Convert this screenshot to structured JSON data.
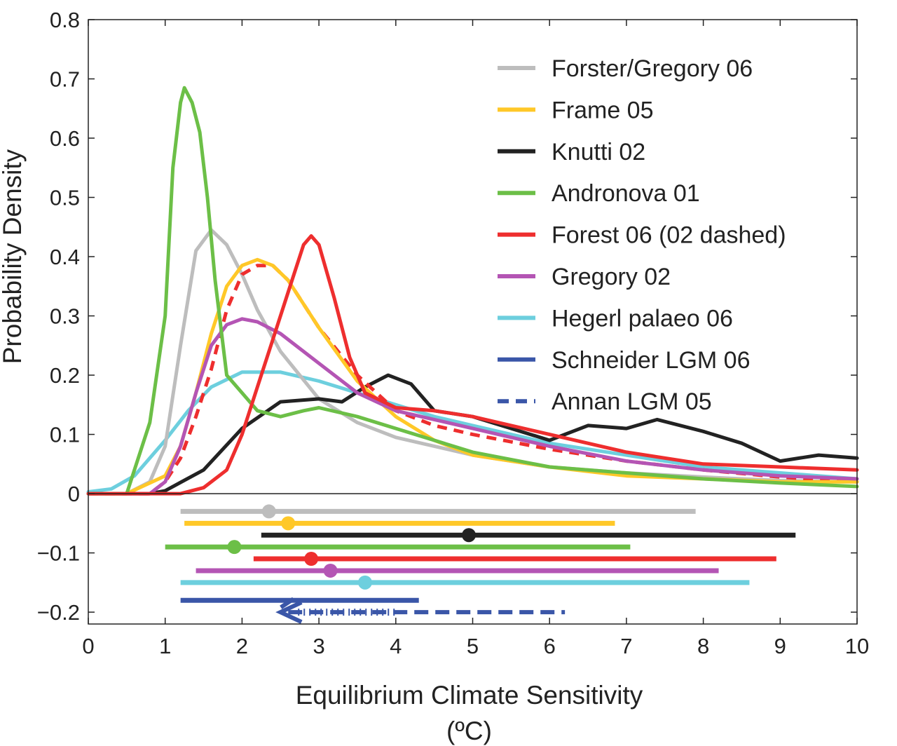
{
  "chart_data": {
    "type": "line",
    "title": "",
    "xlabel": "Equilibrium Climate Sensitivity",
    "xlabel_unit": "(ºC)",
    "ylabel": "Probability Density",
    "xlim": [
      0,
      10
    ],
    "ylim": [
      -0.22,
      0.8
    ],
    "xticks": [
      "0",
      "1",
      "2",
      "3",
      "4",
      "5",
      "6",
      "7",
      "8",
      "9",
      "10"
    ],
    "yticks": [
      {
        "value": 0.8,
        "label": "0.8"
      },
      {
        "value": 0.7,
        "label": "0.7"
      },
      {
        "value": 0.6,
        "label": "0.6"
      },
      {
        "value": 0.5,
        "label": "0.5"
      },
      {
        "value": 0.4,
        "label": "0.4"
      },
      {
        "value": 0.3,
        "label": "0.3"
      },
      {
        "value": 0.2,
        "label": "0.2"
      },
      {
        "value": 0.1,
        "label": "0.1"
      },
      {
        "value": 0,
        "label": "0"
      },
      {
        "value": -0.1,
        "label": "−0.1"
      },
      {
        "value": -0.2,
        "label": "−0.2"
      }
    ],
    "grid": false,
    "legend_position": "top-right",
    "series": [
      {
        "name": "Forster/Gregory 06",
        "color": "#bdbdbd",
        "dash": false,
        "x": [
          0,
          0.5,
          0.8,
          1.0,
          1.2,
          1.4,
          1.6,
          1.8,
          2.0,
          2.2,
          2.5,
          3.0,
          3.5,
          4.0,
          5.0,
          6.0,
          7.0,
          8.0,
          9.0,
          10.0
        ],
        "y": [
          0,
          0,
          0.02,
          0.08,
          0.25,
          0.41,
          0.445,
          0.42,
          0.37,
          0.31,
          0.24,
          0.16,
          0.12,
          0.095,
          0.065,
          0.045,
          0.035,
          0.028,
          0.022,
          0.02
        ]
      },
      {
        "name": "Frame 05",
        "color": "#ffc828",
        "dash": false,
        "x": [
          0,
          0.5,
          1.0,
          1.2,
          1.4,
          1.6,
          1.8,
          2.0,
          2.2,
          2.4,
          2.6,
          3.0,
          3.5,
          4.0,
          4.5,
          5.0,
          6.0,
          7.0,
          8.0,
          9.0,
          10.0
        ],
        "y": [
          0,
          0,
          0.03,
          0.08,
          0.17,
          0.27,
          0.35,
          0.385,
          0.395,
          0.385,
          0.36,
          0.28,
          0.19,
          0.13,
          0.09,
          0.065,
          0.045,
          0.03,
          0.025,
          0.02,
          0.02
        ]
      },
      {
        "name": "Knutti 02",
        "color": "#222222",
        "dash": false,
        "x": [
          0,
          0.8,
          1.0,
          1.5,
          2.0,
          2.5,
          3.0,
          3.3,
          3.6,
          3.9,
          4.2,
          4.5,
          5.0,
          5.5,
          6.0,
          6.5,
          7.0,
          7.4,
          8.0,
          8.5,
          9.0,
          9.5,
          10.0
        ],
        "y": [
          0,
          0,
          0.005,
          0.04,
          0.11,
          0.155,
          0.16,
          0.155,
          0.18,
          0.2,
          0.185,
          0.14,
          0.13,
          0.11,
          0.09,
          0.115,
          0.11,
          0.125,
          0.105,
          0.085,
          0.055,
          0.065,
          0.06
        ]
      },
      {
        "name": "Andronova 01",
        "color": "#6cbf47",
        "dash": false,
        "x": [
          0,
          0.5,
          0.8,
          1.0,
          1.1,
          1.2,
          1.25,
          1.35,
          1.45,
          1.55,
          1.65,
          1.8,
          2.0,
          2.2,
          2.5,
          2.8,
          3.0,
          3.5,
          4.0,
          5.0,
          6.0,
          7.0,
          8.0,
          9.0,
          10.0
        ],
        "y": [
          0,
          0,
          0.12,
          0.3,
          0.55,
          0.66,
          0.685,
          0.66,
          0.61,
          0.5,
          0.36,
          0.2,
          0.17,
          0.14,
          0.13,
          0.14,
          0.145,
          0.13,
          0.11,
          0.07,
          0.045,
          0.035,
          0.025,
          0.018,
          0.012
        ]
      },
      {
        "name": "Forest 06 (02 dashed)",
        "color": "#ee2e2e",
        "dash": false,
        "x": [
          0,
          1.2,
          1.5,
          1.8,
          2.0,
          2.2,
          2.4,
          2.6,
          2.8,
          2.9,
          3.0,
          3.2,
          3.4,
          3.6,
          4.0,
          4.5,
          5.0,
          5.5,
          6.0,
          7.0,
          8.0,
          9.0,
          10.0
        ],
        "y": [
          0,
          0,
          0.01,
          0.04,
          0.1,
          0.18,
          0.26,
          0.34,
          0.42,
          0.435,
          0.42,
          0.33,
          0.23,
          0.17,
          0.145,
          0.14,
          0.13,
          0.115,
          0.1,
          0.07,
          0.05,
          0.045,
          0.04
        ]
      },
      {
        "name": "Forest 02",
        "color": "#ee2e2e",
        "dash": true,
        "x": [
          0,
          0.8,
          1.0,
          1.2,
          1.4,
          1.6,
          1.8,
          2.0,
          2.2,
          2.4,
          2.6,
          3.0,
          3.5,
          4.0,
          4.5,
          5.0,
          6.0,
          7.0,
          8.0,
          9.0,
          10.0
        ],
        "y": [
          0,
          0,
          0.02,
          0.06,
          0.13,
          0.21,
          0.31,
          0.37,
          0.385,
          0.385,
          0.36,
          0.28,
          0.2,
          0.14,
          0.115,
          0.1,
          0.075,
          0.055,
          0.04,
          0.028,
          0.02
        ]
      },
      {
        "name": "Gregory 02",
        "color": "#b455b4",
        "dash": false,
        "x": [
          0,
          0.8,
          1.0,
          1.2,
          1.4,
          1.6,
          1.8,
          2.0,
          2.2,
          2.5,
          3.0,
          3.5,
          4.0,
          4.5,
          5.0,
          5.5,
          6.0,
          7.0,
          8.0,
          9.0,
          10.0
        ],
        "y": [
          0,
          0,
          0.02,
          0.08,
          0.17,
          0.25,
          0.285,
          0.295,
          0.29,
          0.27,
          0.22,
          0.17,
          0.14,
          0.125,
          0.11,
          0.095,
          0.08,
          0.055,
          0.04,
          0.03,
          0.025
        ]
      },
      {
        "name": "Hegerl palaeo 06",
        "color": "#6dcfde",
        "dash": false,
        "x": [
          0,
          0.3,
          0.6,
          1.0,
          1.3,
          1.6,
          2.0,
          2.5,
          3.0,
          3.5,
          4.0,
          4.5,
          5.0,
          6.0,
          7.0,
          8.0,
          9.0,
          10.0
        ],
        "y": [
          0.003,
          0.008,
          0.03,
          0.09,
          0.14,
          0.18,
          0.205,
          0.205,
          0.19,
          0.17,
          0.15,
          0.13,
          0.115,
          0.085,
          0.065,
          0.045,
          0.035,
          0.025
        ]
      }
    ],
    "ranges": [
      {
        "name": "Forster/Gregory 06",
        "color": "#bdbdbd",
        "y": -0.03,
        "start": 1.2,
        "end": 7.9,
        "marker": 2.35,
        "dash": false
      },
      {
        "name": "Frame 05",
        "color": "#ffc828",
        "y": -0.05,
        "start": 1.25,
        "end": 6.85,
        "marker": 2.6,
        "dash": false
      },
      {
        "name": "Knutti 02",
        "color": "#222222",
        "y": -0.07,
        "start": 2.25,
        "end": 9.2,
        "marker": 4.95,
        "dash": false
      },
      {
        "name": "Andronova 01",
        "color": "#6cbf47",
        "y": -0.09,
        "start": 1.0,
        "end": 7.05,
        "marker": 1.9,
        "dash": false
      },
      {
        "name": "Forest 06",
        "color": "#ee2e2e",
        "y": -0.11,
        "start": 2.15,
        "end": 8.95,
        "marker": 2.9,
        "dash": false
      },
      {
        "name": "Gregory 02",
        "color": "#b455b4",
        "y": -0.13,
        "start": 1.4,
        "end": 8.2,
        "marker": 3.15,
        "dash": false
      },
      {
        "name": "Hegerl palaeo 06",
        "color": "#6dcfde",
        "y": -0.15,
        "start": 1.2,
        "end": 8.6,
        "marker": 3.6,
        "dash": false
      },
      {
        "name": "Schneider LGM 06",
        "color": "#3a56a8",
        "y": -0.18,
        "start": 1.2,
        "end": 4.3,
        "marker": null,
        "dash": false
      },
      {
        "name": "Annan LGM 05",
        "color": "#3a56a8",
        "y": -0.2,
        "start": 2.6,
        "end": 6.2,
        "marker": null,
        "dash": true
      }
    ],
    "legend": [
      {
        "label": "Forster/Gregory 06",
        "color": "#bdbdbd",
        "dash": false
      },
      {
        "label": "Frame 05",
        "color": "#ffc828",
        "dash": false
      },
      {
        "label": "Knutti 02",
        "color": "#222222",
        "dash": false
      },
      {
        "label": "Andronova 01",
        "color": "#6cbf47",
        "dash": false
      },
      {
        "label": "Forest 06 (02 dashed)",
        "color": "#ee2e2e",
        "dash": false
      },
      {
        "label": "Gregory 02",
        "color": "#b455b4",
        "dash": false
      },
      {
        "label": "Hegerl palaeo 06",
        "color": "#6dcfde",
        "dash": false
      },
      {
        "label": "Schneider LGM 06",
        "color": "#3a56a8",
        "dash": false
      },
      {
        "label": "Annan LGM 05",
        "color": "#3a56a8",
        "dash": true
      }
    ]
  }
}
